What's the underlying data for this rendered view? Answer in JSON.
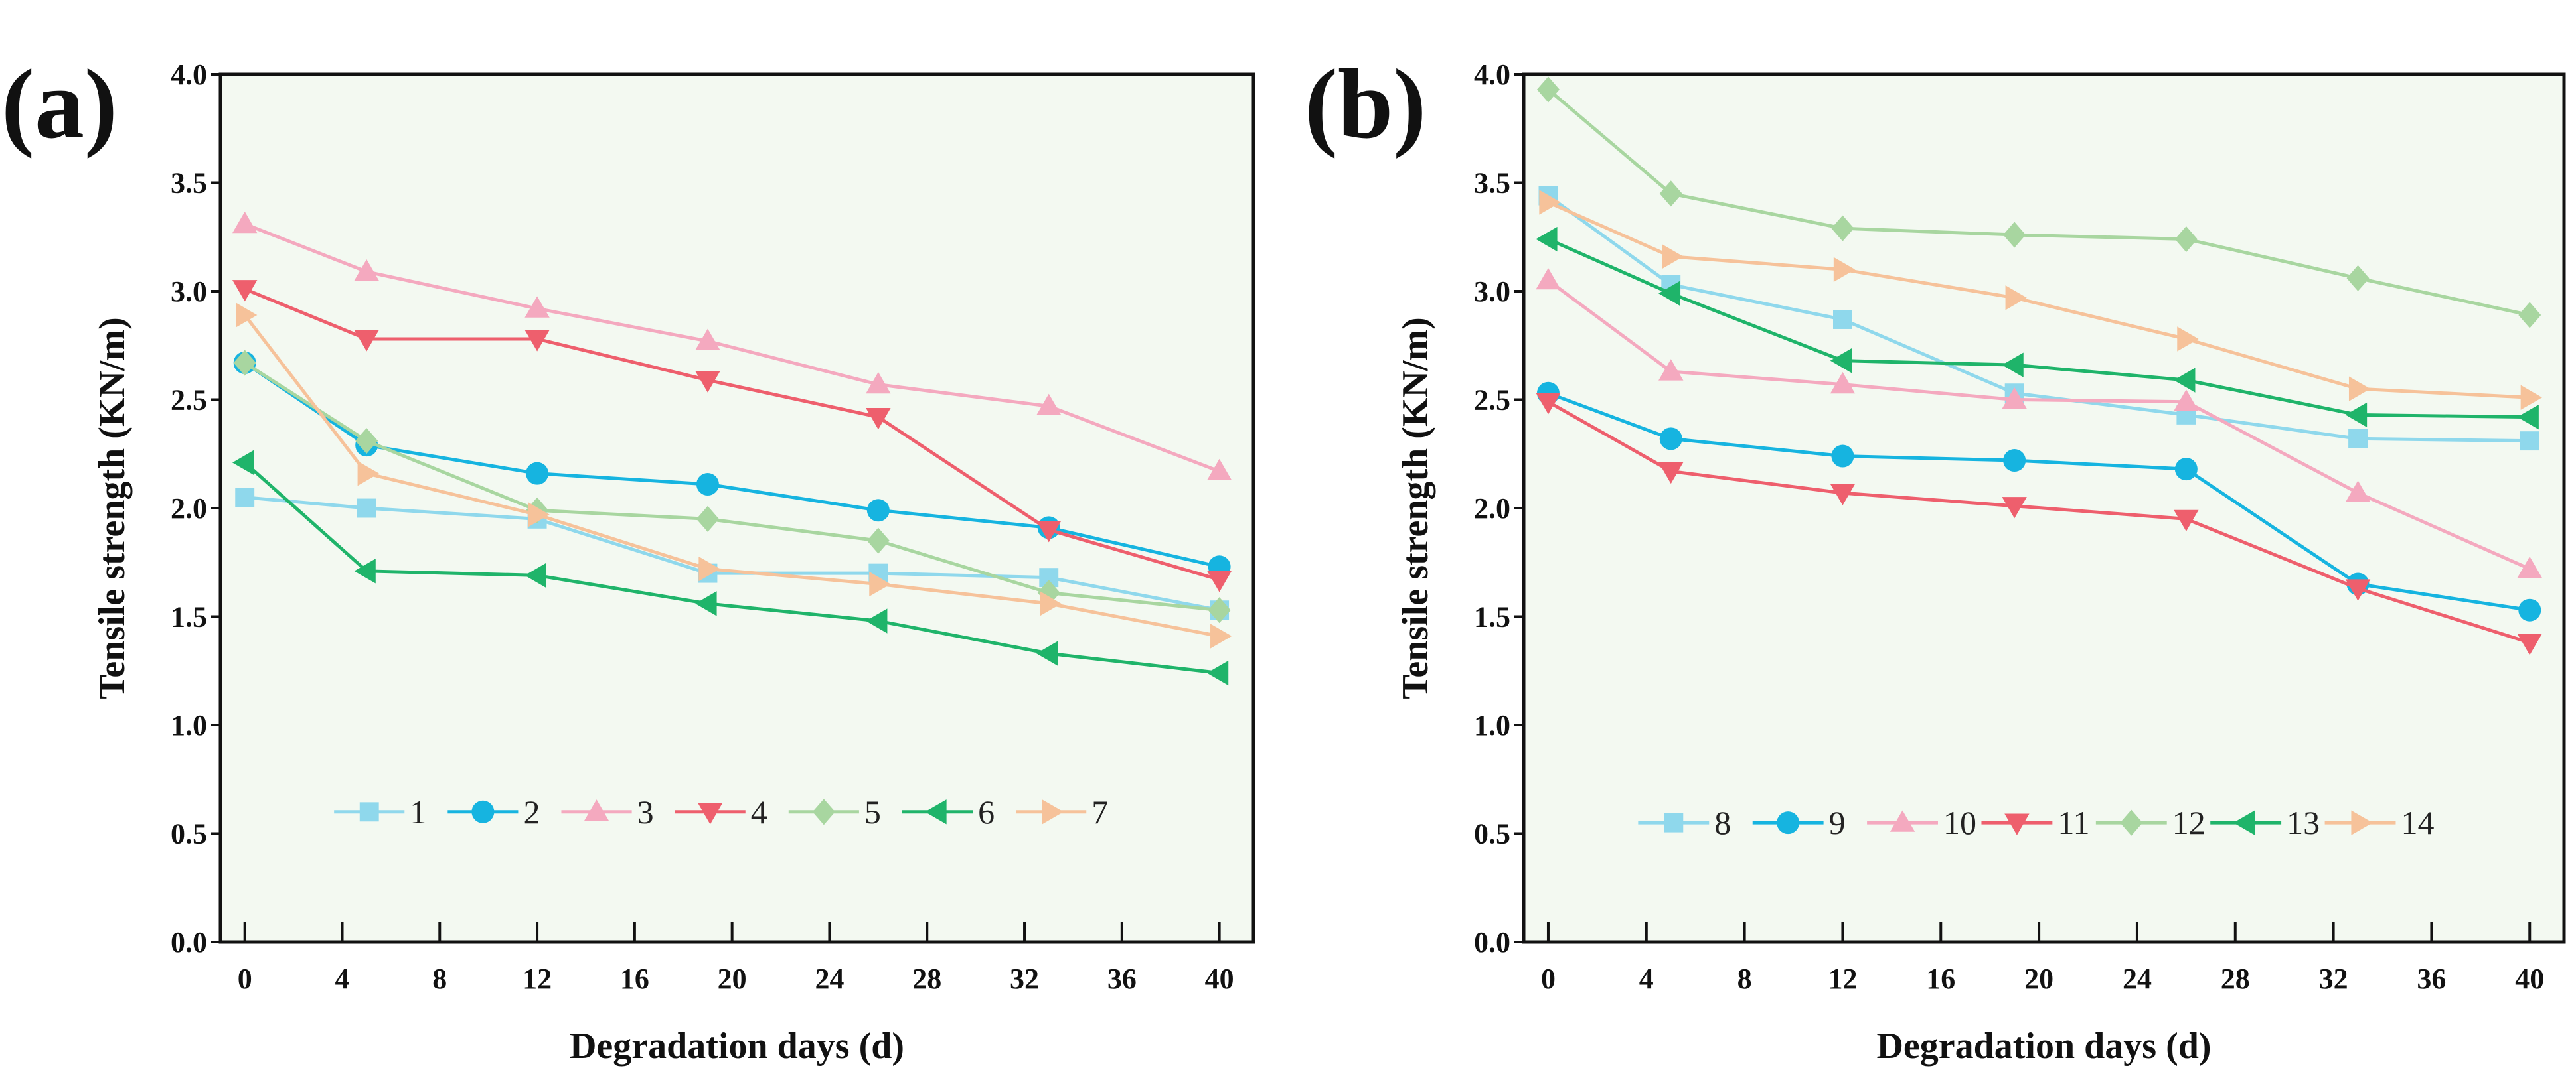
{
  "chart_data": [
    {
      "type": "line",
      "panel_label": "(a)",
      "xlabel": "Degradation days (d)",
      "ylabel": "Tensile strength (KN/m)",
      "xlim": [
        -1,
        41.4
      ],
      "ylim": [
        0,
        4
      ],
      "xticks": [
        0,
        4,
        8,
        12,
        16,
        20,
        24,
        28,
        32,
        36,
        40
      ],
      "yticks": [
        "0.0",
        "0.5",
        "1.0",
        "1.5",
        "2.0",
        "2.5",
        "3.0",
        "3.5",
        "4.0"
      ],
      "x": [
        0,
        5,
        12,
        19,
        26,
        33,
        40
      ],
      "legend_placement": "lower-center",
      "legend_value": 0.6,
      "series": [
        {
          "name": "1",
          "marker": "square",
          "color": "#8fd8ec",
          "values": [
            2.05,
            2.0,
            1.95,
            1.7,
            1.7,
            1.68,
            1.53
          ]
        },
        {
          "name": "2",
          "marker": "circle",
          "color": "#16b4e0",
          "values": [
            2.67,
            2.29,
            2.16,
            2.11,
            1.99,
            1.91,
            1.73
          ]
        },
        {
          "name": "3",
          "marker": "triangle-up",
          "color": "#f4a9bf",
          "values": [
            3.31,
            3.09,
            2.92,
            2.77,
            2.57,
            2.47,
            2.17
          ]
        },
        {
          "name": "4",
          "marker": "triangle-down",
          "color": "#ee5f6d",
          "values": [
            3.01,
            2.78,
            2.78,
            2.59,
            2.42,
            1.9,
            1.67
          ]
        },
        {
          "name": "5",
          "marker": "diamond",
          "color": "#a8d6a0",
          "values": [
            2.67,
            2.31,
            1.99,
            1.95,
            1.85,
            1.61,
            1.53
          ]
        },
        {
          "name": "6",
          "marker": "triangle-left",
          "color": "#1fb46a",
          "values": [
            2.21,
            1.71,
            1.69,
            1.56,
            1.48,
            1.33,
            1.24
          ]
        },
        {
          "name": "7",
          "marker": "triangle-right",
          "color": "#f6c29a",
          "values": [
            2.89,
            2.16,
            1.97,
            1.72,
            1.65,
            1.56,
            1.41
          ]
        }
      ]
    },
    {
      "type": "line",
      "panel_label": "(b)",
      "xlabel": "Degradation days (d)",
      "ylabel": "Tensile strength (KN/m)",
      "xlim": [
        -1,
        41.4
      ],
      "ylim": [
        0,
        4
      ],
      "xticks": [
        0,
        4,
        8,
        12,
        16,
        20,
        24,
        28,
        32,
        36,
        40
      ],
      "yticks": [
        "0.0",
        "0.5",
        "1.0",
        "1.5",
        "2.0",
        "2.5",
        "3.0",
        "3.5",
        "4.0"
      ],
      "x": [
        0,
        5,
        12,
        19,
        26,
        33,
        40
      ],
      "legend_placement": "lower-center",
      "legend_value": 0.55,
      "series": [
        {
          "name": "8",
          "marker": "square",
          "color": "#8fd8ec",
          "values": [
            3.44,
            3.03,
            2.87,
            2.53,
            2.43,
            2.32,
            2.31
          ]
        },
        {
          "name": "9",
          "marker": "circle",
          "color": "#16b4e0",
          "values": [
            2.53,
            2.32,
            2.24,
            2.22,
            2.18,
            1.65,
            1.53
          ]
        },
        {
          "name": "10",
          "marker": "triangle-up",
          "color": "#f4a9bf",
          "values": [
            3.05,
            2.63,
            2.57,
            2.5,
            2.49,
            2.07,
            1.72
          ]
        },
        {
          "name": "11",
          "marker": "triangle-down",
          "color": "#ee5f6d",
          "values": [
            2.49,
            2.17,
            2.07,
            2.01,
            1.95,
            1.63,
            1.38
          ]
        },
        {
          "name": "12",
          "marker": "diamond",
          "color": "#a8d6a0",
          "values": [
            3.93,
            3.45,
            3.29,
            3.26,
            3.24,
            3.06,
            2.89
          ]
        },
        {
          "name": "13",
          "marker": "triangle-left",
          "color": "#1fb46a",
          "values": [
            3.24,
            2.99,
            2.68,
            2.66,
            2.59,
            2.43,
            2.42
          ]
        },
        {
          "name": "14",
          "marker": "triangle-right",
          "color": "#f6c29a",
          "values": [
            3.41,
            3.16,
            3.1,
            2.97,
            2.78,
            2.55,
            2.51
          ]
        }
      ]
    }
  ],
  "colors": {
    "plot_bg": "#f3f9f1",
    "axis": "#111111"
  }
}
